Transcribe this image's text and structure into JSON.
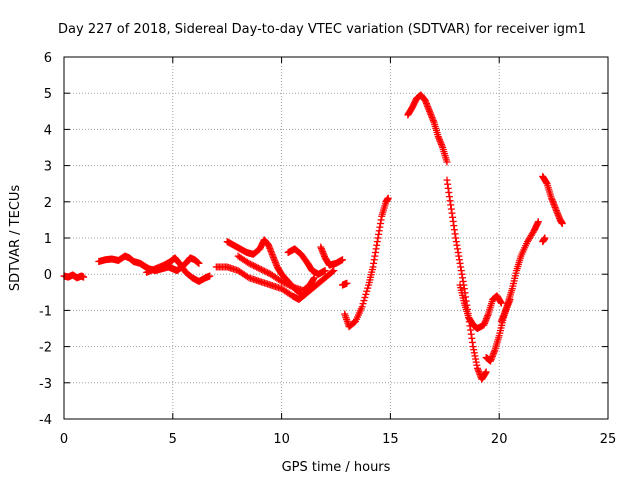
{
  "chart_data": {
    "type": "scatter",
    "title": "Day 227 of 2018, Sidereal Day-to-day VTEC variation (SDTVAR) for receiver igm1",
    "xlabel": "GPS time / hours",
    "ylabel": "SDTVAR / TECUs",
    "xlim": [
      0,
      25
    ],
    "ylim": [
      -4,
      6
    ],
    "xticks": [
      0,
      5,
      10,
      15,
      20,
      25
    ],
    "yticks": [
      -4,
      -3,
      -2,
      -1,
      0,
      1,
      2,
      3,
      4,
      5,
      6
    ],
    "grid": true,
    "marker": "+",
    "color": "#ff0000",
    "series": [
      {
        "name": "SDTVAR",
        "segments": [
          [
            [
              0.0,
              -0.05
            ],
            [
              0.2,
              -0.08
            ],
            [
              0.4,
              -0.02
            ],
            [
              0.6,
              -0.1
            ],
            [
              0.8,
              -0.05
            ],
            [
              0.9,
              -0.08
            ]
          ],
          [
            [
              1.6,
              0.35
            ],
            [
              1.9,
              0.4
            ],
            [
              2.2,
              0.42
            ],
            [
              2.5,
              0.38
            ],
            [
              2.8,
              0.5
            ],
            [
              3.0,
              0.45
            ],
            [
              3.2,
              0.35
            ],
            [
              3.5,
              0.3
            ],
            [
              3.7,
              0.22
            ],
            [
              3.9,
              0.15
            ],
            [
              4.2,
              0.1
            ],
            [
              4.5,
              0.15
            ],
            [
              4.8,
              0.2
            ],
            [
              5.0,
              0.15
            ],
            [
              5.2,
              0.1
            ],
            [
              5.4,
              0.2
            ],
            [
              5.6,
              0.3
            ],
            [
              5.8,
              0.45
            ],
            [
              6.0,
              0.4
            ],
            [
              6.2,
              0.3
            ]
          ],
          [
            [
              3.8,
              0.05
            ],
            [
              4.2,
              0.15
            ],
            [
              4.6,
              0.25
            ],
            [
              4.9,
              0.35
            ],
            [
              5.1,
              0.45
            ],
            [
              5.3,
              0.3
            ],
            [
              5.6,
              0.05
            ],
            [
              5.9,
              -0.1
            ],
            [
              6.2,
              -0.2
            ],
            [
              6.5,
              -0.1
            ],
            [
              6.7,
              -0.05
            ]
          ],
          [
            [
              7.0,
              0.2
            ],
            [
              7.5,
              0.2
            ],
            [
              8.0,
              0.1
            ],
            [
              8.5,
              -0.1
            ],
            [
              9.0,
              -0.2
            ],
            [
              9.5,
              -0.3
            ],
            [
              10.0,
              -0.4
            ],
            [
              10.5,
              -0.6
            ],
            [
              10.8,
              -0.7
            ],
            [
              11.2,
              -0.5
            ],
            [
              11.6,
              -0.3
            ],
            [
              12.0,
              -0.1
            ],
            [
              12.4,
              0.1
            ]
          ],
          [
            [
              7.5,
              0.9
            ],
            [
              7.8,
              0.8
            ],
            [
              8.1,
              0.7
            ],
            [
              8.4,
              0.6
            ],
            [
              8.7,
              0.55
            ],
            [
              9.0,
              0.7
            ],
            [
              9.2,
              0.95
            ],
            [
              9.4,
              0.8
            ],
            [
              9.6,
              0.5
            ],
            [
              9.8,
              0.2
            ],
            [
              10.0,
              0.0
            ],
            [
              10.3,
              -0.2
            ],
            [
              10.6,
              -0.4
            ],
            [
              10.9,
              -0.55
            ]
          ],
          [
            [
              8.0,
              0.5
            ],
            [
              8.5,
              0.3
            ],
            [
              9.0,
              0.15
            ],
            [
              9.5,
              0.0
            ],
            [
              10.0,
              -0.2
            ],
            [
              10.5,
              -0.35
            ],
            [
              11.0,
              -0.45
            ],
            [
              11.3,
              -0.3
            ],
            [
              11.5,
              -0.1
            ]
          ],
          [
            [
              10.3,
              0.6
            ],
            [
              10.6,
              0.7
            ],
            [
              10.9,
              0.55
            ],
            [
              11.2,
              0.3
            ],
            [
              11.4,
              0.1
            ],
            [
              11.7,
              0.0
            ],
            [
              12.0,
              0.1
            ]
          ],
          [
            [
              11.8,
              0.75
            ],
            [
              12.0,
              0.45
            ],
            [
              12.2,
              0.25
            ],
            [
              12.5,
              0.3
            ],
            [
              12.8,
              0.4
            ]
          ],
          [
            [
              12.8,
              -0.3
            ],
            [
              13.0,
              -0.25
            ]
          ],
          [
            [
              12.9,
              -1.1
            ],
            [
              13.1,
              -1.45
            ],
            [
              13.4,
              -1.3
            ],
            [
              13.7,
              -0.9
            ],
            [
              14.0,
              -0.3
            ],
            [
              14.2,
              0.2
            ],
            [
              14.4,
              0.9
            ],
            [
              14.6,
              1.6
            ],
            [
              14.8,
              2.0
            ],
            [
              14.9,
              2.1
            ]
          ],
          [
            [
              15.8,
              4.4
            ],
            [
              16.0,
              4.6
            ],
            [
              16.2,
              4.85
            ],
            [
              16.4,
              4.95
            ],
            [
              16.6,
              4.8
            ],
            [
              16.8,
              4.5
            ],
            [
              17.0,
              4.2
            ],
            [
              17.2,
              3.8
            ],
            [
              17.4,
              3.5
            ],
            [
              17.6,
              3.1
            ]
          ],
          [
            [
              17.6,
              2.6
            ],
            [
              17.8,
              1.8
            ],
            [
              18.0,
              1.0
            ],
            [
              18.2,
              0.3
            ],
            [
              18.4,
              -0.4
            ],
            [
              18.6,
              -1.2
            ],
            [
              18.8,
              -2.0
            ],
            [
              19.0,
              -2.6
            ],
            [
              19.2,
              -2.9
            ],
            [
              19.4,
              -2.7
            ]
          ],
          [
            [
              18.2,
              -0.3
            ],
            [
              18.4,
              -0.8
            ],
            [
              18.6,
              -1.2
            ],
            [
              18.8,
              -1.4
            ],
            [
              19.0,
              -1.5
            ],
            [
              19.3,
              -1.4
            ],
            [
              19.5,
              -1.1
            ],
            [
              19.7,
              -0.7
            ],
            [
              19.9,
              -0.6
            ],
            [
              20.1,
              -0.8
            ]
          ],
          [
            [
              19.4,
              -2.3
            ],
            [
              19.6,
              -2.4
            ],
            [
              19.8,
              -2.1
            ],
            [
              20.0,
              -1.7
            ],
            [
              20.2,
              -1.2
            ],
            [
              20.4,
              -0.8
            ],
            [
              20.6,
              -0.4
            ],
            [
              20.8,
              0.1
            ],
            [
              21.0,
              0.5
            ],
            [
              21.3,
              0.9
            ],
            [
              21.6,
              1.2
            ],
            [
              21.8,
              1.45
            ]
          ],
          [
            [
              20.1,
              -1.3
            ],
            [
              20.3,
              -1.0
            ],
            [
              20.5,
              -0.7
            ]
          ],
          [
            [
              22.0,
              0.9
            ],
            [
              22.1,
              1.0
            ]
          ],
          [
            [
              22.0,
              2.7
            ],
            [
              22.2,
              2.5
            ],
            [
              22.4,
              2.1
            ],
            [
              22.6,
              1.8
            ],
            [
              22.8,
              1.5
            ],
            [
              22.9,
              1.4
            ]
          ]
        ]
      }
    ]
  }
}
